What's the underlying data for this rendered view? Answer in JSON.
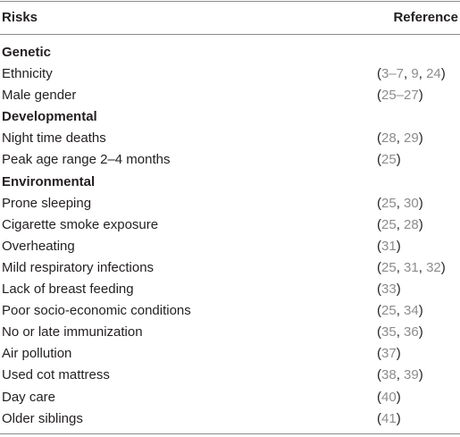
{
  "table": {
    "headers": {
      "risks": "Risks",
      "reference": "Reference"
    },
    "groups": [
      {
        "title": "Genetic",
        "rows": [
          {
            "risk": "Ethnicity",
            "ref": [
              "(",
              "3–7",
              ", ",
              "9",
              ", ",
              "24",
              ")"
            ]
          },
          {
            "risk": "Male gender",
            "ref": [
              "(",
              "25–27",
              ")"
            ]
          }
        ]
      },
      {
        "title": "Developmental",
        "rows": [
          {
            "risk": "Night time deaths",
            "ref": [
              "(",
              "28",
              ", ",
              "29",
              ")"
            ]
          },
          {
            "risk": "Peak age range 2–4 months",
            "ref": [
              "(",
              "25",
              ")"
            ]
          }
        ]
      },
      {
        "title": "Environmental",
        "rows": [
          {
            "risk": "Prone sleeping",
            "ref": [
              "(",
              "25",
              ", ",
              "30",
              ")"
            ]
          },
          {
            "risk": "Cigarette smoke exposure",
            "ref": [
              "(",
              "25",
              ", ",
              "28",
              ")"
            ]
          },
          {
            "risk": "Overheating",
            "ref": [
              "(",
              "31",
              ")"
            ]
          },
          {
            "risk": "Mild respiratory infections",
            "ref": [
              "(",
              "25",
              ", ",
              "31",
              ", ",
              "32",
              ")"
            ]
          },
          {
            "risk": "Lack of breast feeding",
            "ref": [
              "(",
              "33",
              ")"
            ]
          },
          {
            "risk": "Poor socio-economic conditions",
            "ref": [
              "(",
              "25",
              ", ",
              "34",
              ")"
            ]
          },
          {
            "risk": "No or late immunization",
            "ref": [
              "(",
              "35",
              ", ",
              "36",
              ")"
            ]
          },
          {
            "risk": "Air pollution",
            "ref": [
              "(",
              "37",
              ")"
            ]
          },
          {
            "risk": "Used cot mattress",
            "ref": [
              "(",
              "38",
              ", ",
              "39",
              ")"
            ]
          },
          {
            "risk": "Day care",
            "ref": [
              "(",
              "40",
              ")"
            ]
          },
          {
            "risk": "Older siblings",
            "ref": [
              "(",
              "41",
              ")"
            ]
          }
        ]
      }
    ],
    "colors": {
      "text": "#231f20",
      "reference_number": "#8c8c8c",
      "rule": "#8a8a8a"
    }
  }
}
